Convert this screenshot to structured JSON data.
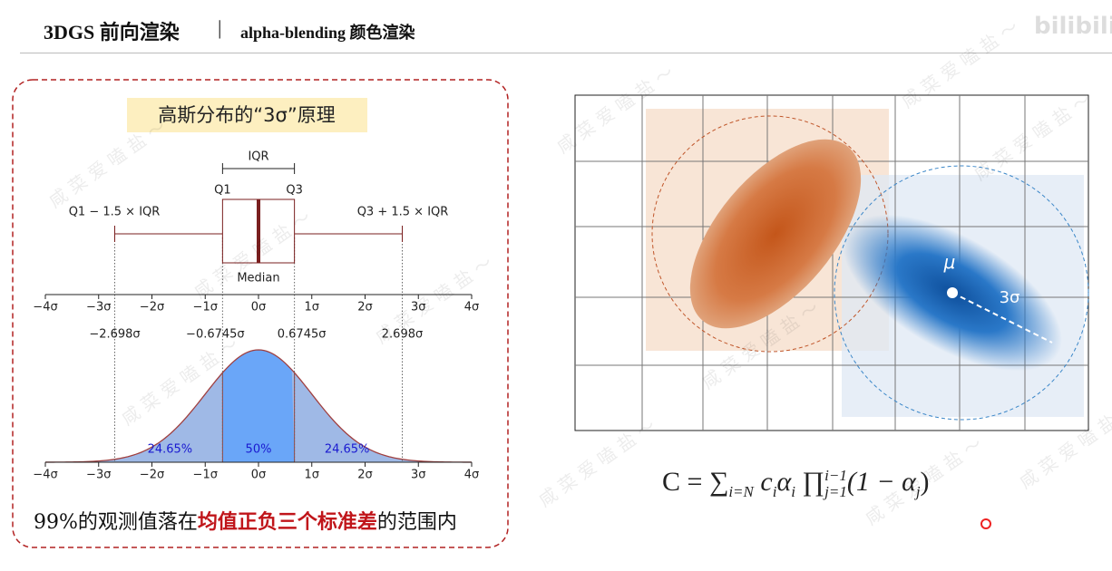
{
  "header": {
    "title": "3DGS 前向渲染",
    "separator": "|",
    "subtitle": "alpha-blending 颜色渲染",
    "logo": "bilibili"
  },
  "watermark": "咸 菜 爱 嗑 盐 ～",
  "left_panel": {
    "title": "高斯分布的“3σ”原理",
    "boxplot": {
      "iqr": "IQR",
      "q1": "Q1",
      "q3": "Q3",
      "median": "Median",
      "lower_whisker": "Q1 − 1.5 × IQR",
      "upper_whisker": "Q3 + 1.5 × IQR",
      "axis_ticks": [
        "−4σ",
        "−3σ",
        "−2σ",
        "−1σ",
        "0σ",
        "1σ",
        "2σ",
        "3σ",
        "4σ"
      ],
      "markers": [
        "−2.698σ",
        "−0.6745σ",
        "0.6745σ",
        "2.698σ"
      ]
    },
    "density": {
      "region_labels": [
        "24.65%",
        "50%",
        "24.65%"
      ],
      "axis_ticks": [
        "−4σ",
        "−3σ",
        "−2σ",
        "−1σ",
        "0σ",
        "1σ",
        "2σ",
        "3σ",
        "4σ"
      ]
    },
    "caption": {
      "before": "99%的观测值落在",
      "highlight": "均值正负三个标准差",
      "after": "的范围内"
    }
  },
  "right_panel": {
    "mu": "μ",
    "radius_label": "3σ",
    "formula": {
      "lhs": "C = ",
      "sum": "∑",
      "sum_sub": "i=N",
      "c": "c",
      "c_sub": "i",
      "alpha": "α",
      "alpha_sub": "i",
      "prod": "∏",
      "prod_sub": "j=1",
      "prod_sup": "i−1",
      "factor": "(1 − α",
      "factor_sub": "j",
      "close": ")"
    }
  }
}
